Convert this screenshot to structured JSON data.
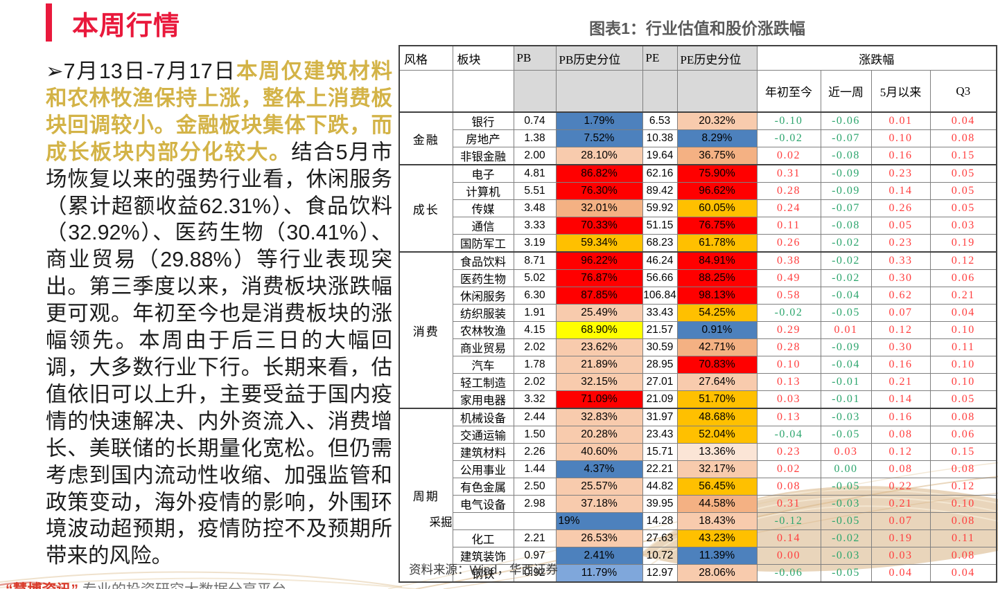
{
  "slide": {
    "title": "本周行情",
    "chart_title": "图表1：行业估值和股价涨跌幅",
    "source": "资料来源：Wind，华西证券",
    "footer_quote": "“慧博资讯”",
    "footer_tagline": "专业的投资研究大数据分享平台"
  },
  "paragraph": {
    "bullet": "➢",
    "lead": "7月13日-7月17日",
    "highlight": "本周仅建筑材料和农林牧渔保持上涨，整体上消费板块回调较小。金融板块集体下跌，而成长板块内部分化较大。",
    "body": "结合5月市场恢复以来的强势行业看，休闲服务（累计超额收益62.31%）、食品饮料（32.92%）、医药生物（30.41%）、商业贸易（29.88%）等行业表现突出。第三季度以来，消费板块涨跌幅更可观。年初至今也是消费板块的涨幅领先。本周由于后三日的大幅回调，大多数行业下行。长期来看，估值依旧可以上升，主要受益于国内疫情的快速解决、内外资流入、消费增长、美联储的长期量化宽松。但仍需考虑到国内流动性收缩、加强监管和政策变动，海外疫情的影响，外围环境波动超预期，疫情防控不及预期所带来的风险。"
  },
  "colors": {
    "accent_red": "#E9193C",
    "highlight_gold": "#D3B347",
    "pos_text": "#FF3D3D",
    "neg_text": "#2CA56D",
    "blue": "#4D81BD",
    "lightblue": "#7FA7DB",
    "red": "#FF0000",
    "gold": "#FFC000",
    "yellow": "#FFFF00",
    "peach1": "#FBE5D6",
    "peach2": "#F8CBAD",
    "peach3": "#F4B183",
    "header_gray": "#D9D9D9"
  },
  "table": {
    "col_headers": [
      "风格",
      "板块",
      "PB",
      "PB历史分位",
      "PE",
      "PE历史分位"
    ],
    "change_header": "涨跌幅",
    "change_cols": [
      "年初至今",
      "近一周",
      "5月以来",
      "Q3"
    ],
    "groups": [
      {
        "style": "金融",
        "rows": [
          {
            "sector": "银行",
            "pb": "0.74",
            "pb_pct": "1.79%",
            "pb_fill": "blue",
            "pe": "6.53",
            "pe_pct": "20.32%",
            "pe_fill": "peach2",
            "chg": [
              [
                "-0.10",
                "g"
              ],
              [
                "-0.06",
                "g"
              ],
              [
                "0.01",
                "r"
              ],
              [
                "0.04",
                "r"
              ]
            ]
          },
          {
            "sector": "房地产",
            "pb": "1.38",
            "pb_pct": "7.52%",
            "pb_fill": "blue",
            "pe": "10.38",
            "pe_pct": "8.29%",
            "pe_fill": "blue",
            "chg": [
              [
                "-0.02",
                "g"
              ],
              [
                "-0.07",
                "g"
              ],
              [
                "0.10",
                "r"
              ],
              [
                "0.08",
                "r"
              ]
            ]
          },
          {
            "sector": "非银金融",
            "pb": "2.00",
            "pb_pct": "28.10%",
            "pb_fill": "peach2",
            "pe": "19.64",
            "pe_pct": "36.75%",
            "pe_fill": "peach3",
            "chg": [
              [
                "0.02",
                "r"
              ],
              [
                "-0.08",
                "g"
              ],
              [
                "0.16",
                "r"
              ],
              [
                "0.15",
                "r"
              ]
            ]
          }
        ]
      },
      {
        "style": "成长",
        "rows": [
          {
            "sector": "电子",
            "pb": "4.81",
            "pb_pct": "86.82%",
            "pb_fill": "red",
            "pe": "62.16",
            "pe_pct": "75.90%",
            "pe_fill": "red",
            "chg": [
              [
                "0.31",
                "r"
              ],
              [
                "-0.09",
                "g"
              ],
              [
                "0.23",
                "r"
              ],
              [
                "0.05",
                "r"
              ]
            ]
          },
          {
            "sector": "计算机",
            "pb": "5.51",
            "pb_pct": "76.30%",
            "pb_fill": "red",
            "pe": "89.42",
            "pe_pct": "96.62%",
            "pe_fill": "red",
            "chg": [
              [
                "0.28",
                "r"
              ],
              [
                "-0.09",
                "g"
              ],
              [
                "0.14",
                "r"
              ],
              [
                "0.05",
                "r"
              ]
            ]
          },
          {
            "sector": "传媒",
            "pb": "3.48",
            "pb_pct": "32.01%",
            "pb_fill": "peach3",
            "pe": "59.92",
            "pe_pct": "60.05%",
            "pe_fill": "gold",
            "chg": [
              [
                "0.24",
                "r"
              ],
              [
                "-0.07",
                "g"
              ],
              [
                "0.26",
                "r"
              ],
              [
                "0.05",
                "r"
              ]
            ]
          },
          {
            "sector": "通信",
            "pb": "3.33",
            "pb_pct": "70.33%",
            "pb_fill": "red",
            "pe": "51.15",
            "pe_pct": "76.75%",
            "pe_fill": "red",
            "chg": [
              [
                "0.11",
                "r"
              ],
              [
                "-0.08",
                "g"
              ],
              [
                "0.05",
                "r"
              ],
              [
                "0.03",
                "r"
              ]
            ]
          },
          {
            "sector": "国防军工",
            "pb": "3.19",
            "pb_pct": "59.34%",
            "pb_fill": "gold",
            "pe": "68.23",
            "pe_pct": "61.78%",
            "pe_fill": "gold",
            "chg": [
              [
                "0.26",
                "r"
              ],
              [
                "-0.02",
                "g"
              ],
              [
                "0.23",
                "r"
              ],
              [
                "0.19",
                "r"
              ]
            ]
          }
        ]
      },
      {
        "style": "消费",
        "rows": [
          {
            "sector": "食品饮料",
            "pb": "8.71",
            "pb_pct": "96.22%",
            "pb_fill": "red",
            "pe": "46.24",
            "pe_pct": "84.91%",
            "pe_fill": "red",
            "chg": [
              [
                "0.38",
                "r"
              ],
              [
                "-0.02",
                "g"
              ],
              [
                "0.33",
                "r"
              ],
              [
                "0.12",
                "r"
              ]
            ]
          },
          {
            "sector": "医药生物",
            "pb": "5.02",
            "pb_pct": "76.87%",
            "pb_fill": "red",
            "pe": "56.66",
            "pe_pct": "88.25%",
            "pe_fill": "red",
            "chg": [
              [
                "0.49",
                "r"
              ],
              [
                "-0.02",
                "g"
              ],
              [
                "0.30",
                "r"
              ],
              [
                "0.06",
                "r"
              ]
            ]
          },
          {
            "sector": "休闲服务",
            "pb": "6.30",
            "pb_pct": "87.85%",
            "pb_fill": "red",
            "pe": "106.84",
            "pe_pct": "98.13%",
            "pe_fill": "red",
            "chg": [
              [
                "0.58",
                "r"
              ],
              [
                "-0.04",
                "g"
              ],
              [
                "0.62",
                "r"
              ],
              [
                "0.21",
                "r"
              ]
            ]
          },
          {
            "sector": "纺织服装",
            "pb": "1.91",
            "pb_pct": "25.49%",
            "pb_fill": "peach2",
            "pe": "33.43",
            "pe_pct": "54.25%",
            "pe_fill": "gold",
            "chg": [
              [
                "-0.02",
                "g"
              ],
              [
                "-0.05",
                "g"
              ],
              [
                "0.07",
                "r"
              ],
              [
                "0.04",
                "r"
              ]
            ]
          },
          {
            "sector": "农林牧渔",
            "pb": "4.15",
            "pb_pct": "68.90%",
            "pb_fill": "yellow",
            "pe": "21.57",
            "pe_pct": "0.91%",
            "pe_fill": "blue",
            "chg": [
              [
                "0.29",
                "r"
              ],
              [
                "0.01",
                "r"
              ],
              [
                "0.12",
                "r"
              ],
              [
                "0.10",
                "r"
              ]
            ]
          },
          {
            "sector": "商业贸易",
            "pb": "2.02",
            "pb_pct": "23.62%",
            "pb_fill": "peach2",
            "pe": "30.59",
            "pe_pct": "42.71%",
            "pe_fill": "peach3",
            "chg": [
              [
                "0.28",
                "r"
              ],
              [
                "-0.09",
                "g"
              ],
              [
                "0.30",
                "r"
              ],
              [
                "0.11",
                "r"
              ]
            ]
          },
          {
            "sector": "汽车",
            "pb": "1.78",
            "pb_pct": "21.89%",
            "pb_fill": "peach2",
            "pe": "28.95",
            "pe_pct": "70.83%",
            "pe_fill": "red",
            "chg": [
              [
                "0.10",
                "r"
              ],
              [
                "-0.04",
                "g"
              ],
              [
                "0.16",
                "r"
              ],
              [
                "0.10",
                "r"
              ]
            ]
          },
          {
            "sector": "轻工制造",
            "pb": "2.02",
            "pb_pct": "32.15%",
            "pb_fill": "peach2",
            "pe": "27.01",
            "pe_pct": "27.64%",
            "pe_fill": "peach2",
            "chg": [
              [
                "0.13",
                "r"
              ],
              [
                "-0.01",
                "g"
              ],
              [
                "0.21",
                "r"
              ],
              [
                "0.10",
                "r"
              ]
            ]
          },
          {
            "sector": "家用电器",
            "pb": "3.32",
            "pb_pct": "71.09%",
            "pb_fill": "red",
            "pe": "21.09",
            "pe_pct": "51.70%",
            "pe_fill": "gold",
            "chg": [
              [
                "0.03",
                "r"
              ],
              [
                "-0.01",
                "g"
              ],
              [
                "0.14",
                "r"
              ],
              [
                "0.05",
                "r"
              ]
            ]
          }
        ]
      },
      {
        "style": "周期",
        "rows": [
          {
            "sector": "机械设备",
            "pb": "2.44",
            "pb_pct": "32.83%",
            "pb_fill": "peach2",
            "pe": "31.97",
            "pe_pct": "48.68%",
            "pe_fill": "gold",
            "chg": [
              [
                "0.13",
                "r"
              ],
              [
                "-0.03",
                "g"
              ],
              [
                "0.16",
                "r"
              ],
              [
                "0.08",
                "r"
              ]
            ]
          },
          {
            "sector": "交通运输",
            "pb": "1.50",
            "pb_pct": "20.28%",
            "pb_fill": "peach2",
            "pe": "23.43",
            "pe_pct": "52.04%",
            "pe_fill": "gold",
            "chg": [
              [
                "-0.04",
                "g"
              ],
              [
                "-0.05",
                "g"
              ],
              [
                "0.08",
                "r"
              ],
              [
                "0.06",
                "r"
              ]
            ]
          },
          {
            "sector": "建筑材料",
            "pb": "2.26",
            "pb_pct": "40.60%",
            "pb_fill": "peach2",
            "pe": "15.71",
            "pe_pct": "13.36%",
            "pe_fill": "peach1",
            "chg": [
              [
                "0.23",
                "r"
              ],
              [
                "0.03",
                "r"
              ],
              [
                "0.12",
                "r"
              ],
              [
                "0.15",
                "r"
              ]
            ]
          },
          {
            "sector": "公用事业",
            "pb": "1.44",
            "pb_pct": "4.37%",
            "pb_fill": "blue",
            "pe": "22.21",
            "pe_pct": "32.17%",
            "pe_fill": "peach2",
            "chg": [
              [
                "0.02",
                "r"
              ],
              [
                "0.00",
                "g"
              ],
              [
                "0.08",
                "r"
              ],
              [
                "0.08",
                "r"
              ]
            ]
          },
          {
            "sector": "有色金属",
            "pb": "2.50",
            "pb_pct": "25.57%",
            "pb_fill": "peach2",
            "pe": "44.82",
            "pe_pct": "56.45%",
            "pe_fill": "gold",
            "chg": [
              [
                "0.08",
                "r"
              ],
              [
                "-0.05",
                "g"
              ],
              [
                "0.22",
                "r"
              ],
              [
                "0.12",
                "r"
              ]
            ]
          },
          {
            "sector": "电气设备",
            "pb": "2.98",
            "pb_pct": "37.18%",
            "pb_fill": "peach2",
            "pe": "39.95",
            "pe_pct": "44.58%",
            "pe_fill": "peach3",
            "chg": [
              [
                "0.31",
                "r"
              ],
              [
                "-0.03",
                "g"
              ],
              [
                "0.21",
                "r"
              ],
              [
                "0.10",
                "r"
              ]
            ]
          },
          {
            "sector": "采掘",
            "shift": true,
            "pb": "",
            "pb_pct": "19%",
            "pb_fill": "blue",
            "pb_align": "left",
            "pe": "14.28",
            "pe_pct": "18.43%",
            "pe_fill": "peach2",
            "chg": [
              [
                "-0.12",
                "g"
              ],
              [
                "-0.05",
                "g"
              ],
              [
                "0.07",
                "r"
              ],
              [
                "0.08",
                "r"
              ]
            ]
          },
          {
            "sector": "化工",
            "pb": "2.21",
            "pb_pct": "26.53%",
            "pb_fill": "peach2",
            "pe": "27.63",
            "pe_pct": "43.23%",
            "pe_fill": "gold",
            "chg": [
              [
                "0.14",
                "r"
              ],
              [
                "-0.02",
                "g"
              ],
              [
                "0.19",
                "r"
              ],
              [
                "0.11",
                "r"
              ]
            ]
          },
          {
            "sector": "建筑装饰",
            "pb": "0.97",
            "pb_pct": "2.41%",
            "pb_fill": "blue",
            "pe": "10.72",
            "pe_pct": "11.39%",
            "pe_fill": "blue",
            "chg": [
              [
                "0.00",
                "r"
              ],
              [
                "-0.03",
                "g"
              ],
              [
                "0.03",
                "r"
              ],
              [
                "0.08",
                "r"
              ]
            ]
          },
          {
            "sector": "钢铁",
            "pb": "0.92",
            "pb_pct": "11.79%",
            "pb_fill": "lightblue",
            "pe": "12.97",
            "pe_pct": "28.06%",
            "pe_fill": "peach2",
            "chg": [
              [
                "-0.06",
                "g"
              ],
              [
                "-0.05",
                "g"
              ],
              [
                "0.04",
                "r"
              ],
              [
                "0.04",
                "r"
              ]
            ]
          }
        ]
      }
    ]
  }
}
